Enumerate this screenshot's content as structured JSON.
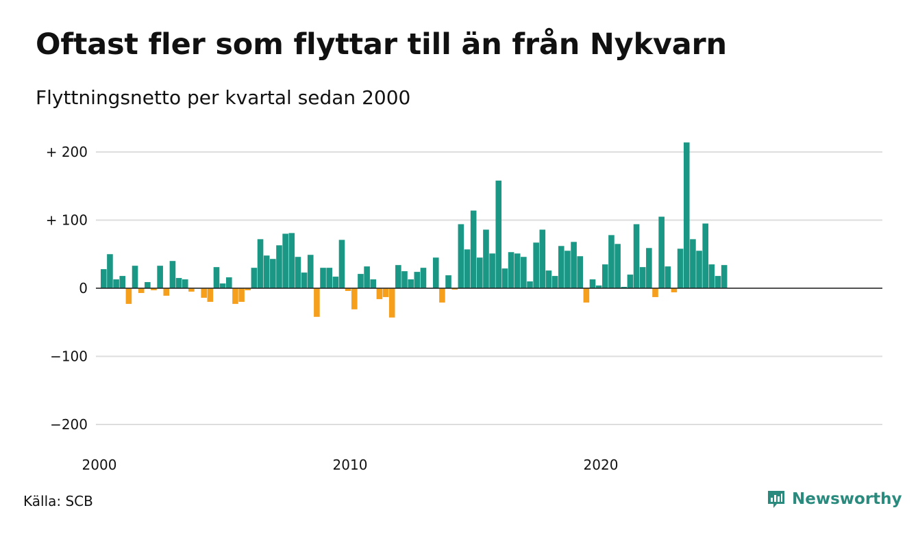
{
  "title": "Oftast fler som flyttar till än från Nykvarn",
  "subtitle": "Flyttningsnetto per kvartal sedan 2000",
  "source": "Källa: SCB",
  "brand": {
    "name": "Newsworthy",
    "color": "#2a8a7d"
  },
  "colors": {
    "positive": "#1a9785",
    "negative": "#f59f1d",
    "grid": "#dddddd",
    "axis": "#222222"
  },
  "chart_data": {
    "type": "bar",
    "title": "Oftast fler som flyttar till än från Nykvarn",
    "subtitle": "Flyttningsnetto per kvartal sedan 2000",
    "ylim": [
      -200,
      215
    ],
    "grid": true,
    "y_ticks": [
      {
        "value": 200,
        "label": "+ 200"
      },
      {
        "value": 100,
        "label": "+ 100"
      },
      {
        "value": 0,
        "label": "0"
      },
      {
        "value": -100,
        "label": "−100"
      },
      {
        "value": -200,
        "label": "−200"
      }
    ],
    "x_ticks": [
      {
        "label": "2000",
        "index": 0
      },
      {
        "label": "2010",
        "index": 40
      },
      {
        "label": "2020",
        "index": 80
      }
    ],
    "start": "2000 Q1",
    "frequency": "quarter",
    "values": [
      28,
      50,
      13,
      18,
      -23,
      33,
      -7,
      9,
      -3,
      33,
      -11,
      40,
      15,
      13,
      -5,
      0,
      -14,
      -20,
      31,
      7,
      16,
      -23,
      -20,
      -3,
      30,
      72,
      48,
      43,
      63,
      80,
      81,
      46,
      23,
      49,
      -42,
      30,
      30,
      17,
      71,
      -4,
      -31,
      21,
      32,
      13,
      -16,
      -13,
      -43,
      34,
      25,
      13,
      24,
      30,
      0,
      45,
      -21,
      19,
      -2,
      94,
      57,
      114,
      45,
      86,
      51,
      158,
      29,
      53,
      51,
      46,
      10,
      67,
      86,
      26,
      18,
      62,
      55,
      68,
      47,
      -21,
      13,
      4,
      35,
      78,
      65,
      2,
      20,
      94,
      31,
      59,
      -13,
      105,
      32,
      -6,
      58,
      214,
      72,
      55,
      95,
      35,
      18,
      34
    ]
  }
}
